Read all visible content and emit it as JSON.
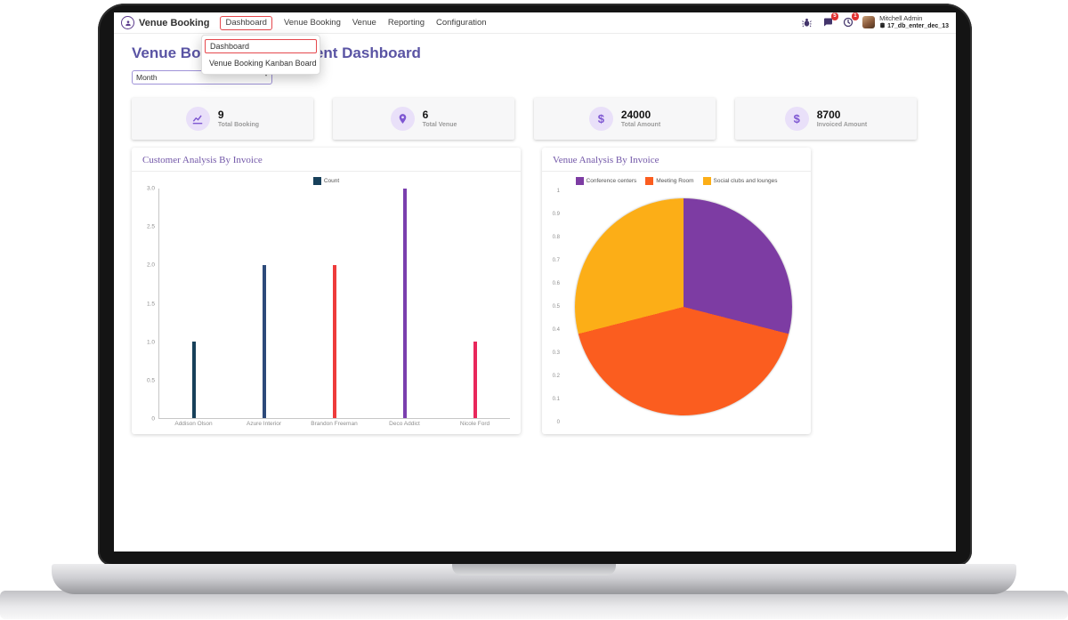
{
  "navbar": {
    "app_name": "Venue Booking",
    "menu": [
      {
        "label": "Dashboard"
      },
      {
        "label": "Venue Booking"
      },
      {
        "label": "Venue"
      },
      {
        "label": "Reporting"
      },
      {
        "label": "Configuration"
      }
    ],
    "systray": {
      "message_badge": "5",
      "activity_badge": "1",
      "user_name": "Mitchell Admin",
      "database": "17_db_enter_dec_13"
    }
  },
  "dropdown_menu": {
    "items": [
      {
        "label": "Dashboard"
      },
      {
        "label": "Venue Booking Kanban Board"
      }
    ]
  },
  "page": {
    "title": "Venue Booking Management Dashboard",
    "period_filter_value": "Month"
  },
  "kpis": [
    {
      "icon": "chart-line-icon",
      "value": "9",
      "label": "Total Booking"
    },
    {
      "icon": "location-pin-icon",
      "value": "6",
      "label": "Total Venue"
    },
    {
      "icon": "dollar-icon",
      "value": "24000",
      "label": "Total Amount"
    },
    {
      "icon": "dollar-icon",
      "value": "8700",
      "label": "Invoiced Amount"
    }
  ],
  "colors": {
    "accent_red": "#e5484d",
    "title_purple": "#5a54a4",
    "chart_header_purple": "#7257a8",
    "kpi_icon_purple": "#7e57d2",
    "kpi_icon_bg": "#e9e0f9"
  },
  "chart_data": [
    {
      "type": "bar",
      "title": "Customer Analysis By Invoice",
      "legend": [
        {
          "label": "Count",
          "color": "#17405a"
        }
      ],
      "legend_position": "top",
      "categories": [
        "Addison Olson",
        "Azure Interior",
        "Brandon Freeman",
        "Deco Addict",
        "Nicole Ford"
      ],
      "values": [
        1,
        2,
        2,
        3,
        1
      ],
      "bar_colors": [
        "#17405a",
        "#2d4a7a",
        "#ee3b3b",
        "#7a3fae",
        "#e8275b"
      ],
      "ylim": [
        0,
        3
      ],
      "yticks": [
        "3.0",
        "2.5",
        "2.0",
        "1.5",
        "1.0",
        "0.5",
        "0"
      ],
      "grid": false
    },
    {
      "type": "pie",
      "title": "Venue Analysis By Invoice",
      "labels": [
        "Conference centers",
        "Meeting Room",
        "Social clubs and lounges"
      ],
      "values": [
        29,
        42,
        29
      ],
      "values_note": "percent, estimated from slice angles",
      "colors": [
        "#7d3ca3",
        "#fb5d1f",
        "#fcae17"
      ],
      "yticks": [
        "1",
        "0.9",
        "0.8",
        "0.7",
        "0.6",
        "0.5",
        "0.4",
        "0.3",
        "0.2",
        "0.1",
        "0"
      ],
      "legend_position": "top"
    }
  ]
}
